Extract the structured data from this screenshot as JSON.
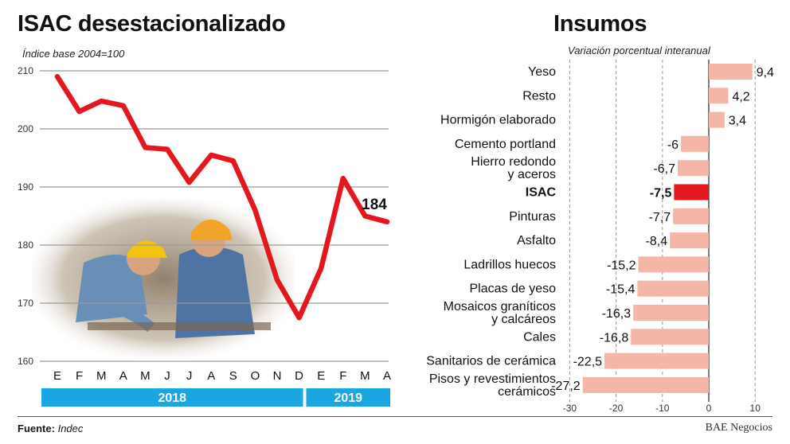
{
  "colors": {
    "line": "#e3181f",
    "bar": "#f4b7a7",
    "bar_highlight": "#e3181f",
    "year_band": "#19a6e1",
    "grid": "#9a9a9a"
  },
  "left_panel": {
    "title": "ISAC desestacionalizado",
    "subtitle": "Índice base 2004=100",
    "image_icon": "construction-workers-photo"
  },
  "right_panel": {
    "title": "Insumos",
    "subtitle": "Variación porcentual interanual"
  },
  "footer": {
    "source_label": "Fuente:",
    "source_value": "Indec",
    "credit": "BAE Negocios"
  },
  "chart_data": [
    {
      "type": "line",
      "title": "ISAC desestacionalizado",
      "subtitle": "Índice base 2004=100",
      "categories": [
        "E",
        "F",
        "M",
        "A",
        "M",
        "J",
        "J",
        "A",
        "S",
        "O",
        "N",
        "D",
        "E",
        "F",
        "M",
        "A"
      ],
      "years": [
        {
          "label": "2018",
          "months": 12
        },
        {
          "label": "2019",
          "months": 4
        }
      ],
      "values": [
        209,
        203,
        204.8,
        204,
        196.8,
        196.5,
        190.8,
        195.5,
        194.5,
        186,
        174,
        167.5,
        176,
        191.5,
        185,
        184
      ],
      "last_value_label": "184",
      "ylim": [
        160,
        210
      ],
      "yticks": [
        210,
        200,
        190,
        180,
        170,
        160
      ],
      "grid": true
    },
    {
      "type": "bar",
      "orientation": "horizontal",
      "title": "Insumos",
      "subtitle": "Variación porcentual interanual",
      "categories": [
        [
          "Yeso"
        ],
        [
          "Resto"
        ],
        [
          "Hormigón elaborado"
        ],
        [
          "Cemento portland"
        ],
        [
          "Hierro redondo",
          "y aceros"
        ],
        [
          "ISAC"
        ],
        [
          "Pinturas"
        ],
        [
          "Asfalto"
        ],
        [
          "Ladrillos huecos"
        ],
        [
          "Placas de yeso"
        ],
        [
          "Mosaicos graníticos",
          "y calcáreos"
        ],
        [
          "Cales"
        ],
        [
          "Sanitarios de cerámica"
        ],
        [
          "Pisos y revestimientos",
          "cerámicos"
        ]
      ],
      "values": [
        9.4,
        4.2,
        3.4,
        -6,
        -6.7,
        -7.5,
        -7.7,
        -8.4,
        -15.2,
        -15.4,
        -16.3,
        -16.8,
        -22.5,
        -27.2
      ],
      "value_labels": [
        "9,4",
        "4,2",
        "3,4",
        "-6",
        "-6,7",
        "-7,5",
        "-7,7",
        "-8,4",
        "-15,2",
        "-15,4",
        "-16,3",
        "-16,8",
        "-22,5",
        "-27,2"
      ],
      "highlight": "ISAC",
      "xlim": [
        -30,
        10
      ],
      "xticks": [
        -30,
        -20,
        -10,
        0,
        10
      ],
      "grid": true
    }
  ]
}
